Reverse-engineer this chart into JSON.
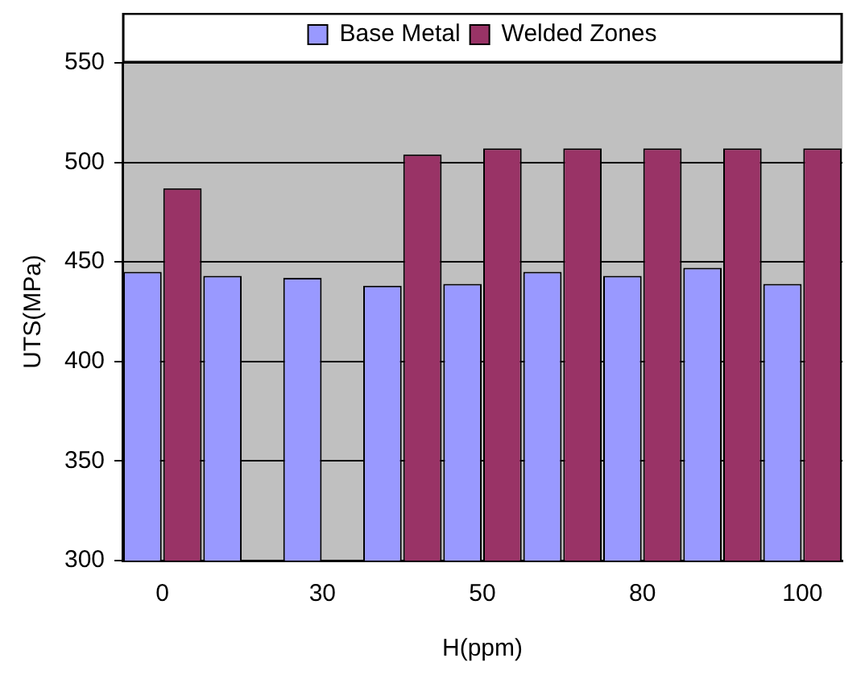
{
  "chart_data": {
    "type": "bar",
    "xlabel": "H(ppm)",
    "ylabel": "UTS(MPa)",
    "categories": [
      "0",
      null,
      "30",
      null,
      "50",
      null,
      "80",
      null,
      "100"
    ],
    "series": [
      {
        "name": "Base Metal",
        "color": "#9999ff",
        "values": [
          445,
          443,
          442,
          438,
          439,
          445,
          443,
          447,
          439
        ]
      },
      {
        "name": "Welded Zones",
        "color": "#993366",
        "values": [
          487,
          null,
          null,
          504,
          507,
          507,
          507,
          507,
          507
        ]
      }
    ],
    "ylim": [
      300,
      550
    ],
    "yticks": [
      300,
      350,
      400,
      450,
      500,
      550
    ],
    "grid": "y",
    "legend": "top"
  }
}
